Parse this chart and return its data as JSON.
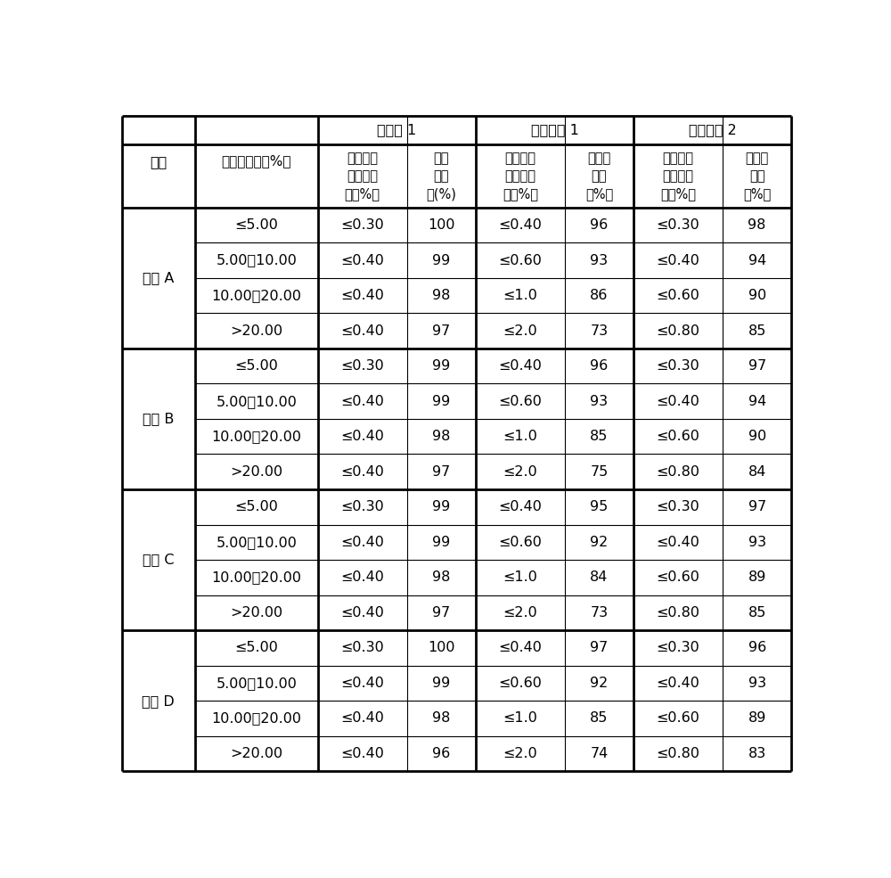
{
  "header_top_labels": [
    "实施例 1",
    "对比试验 1",
    "对比试验 2"
  ],
  "header_sub": [
    "平行测定\n的绝对差\n值（%）",
    "检验\n准确\n率(%)",
    "平行测定\n的绝对差\n值（%）",
    "检验准\n确率\n（%）",
    "平行测定\n的绝对差\n值（%）",
    "检验准\n确率\n（%）"
  ],
  "col0_header": "项目",
  "col1_header": "氧化钾含量（%）",
  "samples": [
    {
      "name": "试样 A",
      "rows": [
        [
          "≤5.00",
          "≤0.30",
          "100",
          "≤0.40",
          "96",
          "≤0.30",
          "98"
        ],
        [
          "5.00～10.00",
          "≤0.40",
          "99",
          "≤0.60",
          "93",
          "≤0.40",
          "94"
        ],
        [
          "10.00～20.00",
          "≤0.40",
          "98",
          "≤1.0",
          "86",
          "≤0.60",
          "90"
        ],
        [
          ">20.00",
          "≤0.40",
          "97",
          "≤2.0",
          "73",
          "≤0.80",
          "85"
        ]
      ]
    },
    {
      "name": "试样 B",
      "rows": [
        [
          "≤5.00",
          "≤0.30",
          "99",
          "≤0.40",
          "96",
          "≤0.30",
          "97"
        ],
        [
          "5.00～10.00",
          "≤0.40",
          "99",
          "≤0.60",
          "93",
          "≤0.40",
          "94"
        ],
        [
          "10.00～20.00",
          "≤0.40",
          "98",
          "≤1.0",
          "85",
          "≤0.60",
          "90"
        ],
        [
          ">20.00",
          "≤0.40",
          "97",
          "≤2.0",
          "75",
          "≤0.80",
          "84"
        ]
      ]
    },
    {
      "name": "试样 C",
      "rows": [
        [
          "≤5.00",
          "≤0.30",
          "99",
          "≤0.40",
          "95",
          "≤0.30",
          "97"
        ],
        [
          "5.00～10.00",
          "≤0.40",
          "99",
          "≤0.60",
          "92",
          "≤0.40",
          "93"
        ],
        [
          "10.00～20.00",
          "≤0.40",
          "98",
          "≤1.0",
          "84",
          "≤0.60",
          "89"
        ],
        [
          ">20.00",
          "≤0.40",
          "97",
          "≤2.0",
          "73",
          "≤0.80",
          "85"
        ]
      ]
    },
    {
      "name": "试样 D",
      "rows": [
        [
          "≤5.00",
          "≤0.30",
          "100",
          "≤0.40",
          "97",
          "≤0.30",
          "96"
        ],
        [
          "5.00～10.00",
          "≤0.40",
          "99",
          "≤0.60",
          "92",
          "≤0.40",
          "93"
        ],
        [
          "10.00～20.00",
          "≤0.40",
          "98",
          "≤1.0",
          "85",
          "≤0.60",
          "89"
        ],
        [
          ">20.00",
          "≤0.40",
          "96",
          "≤2.0",
          "74",
          "≤0.80",
          "83"
        ]
      ]
    }
  ],
  "bg_color": "#ffffff",
  "line_color": "#000000",
  "text_color": "#000000",
  "thick_lw": 2.0,
  "thin_lw": 0.8,
  "font_size": 11.5,
  "header_font_size": 11.5
}
